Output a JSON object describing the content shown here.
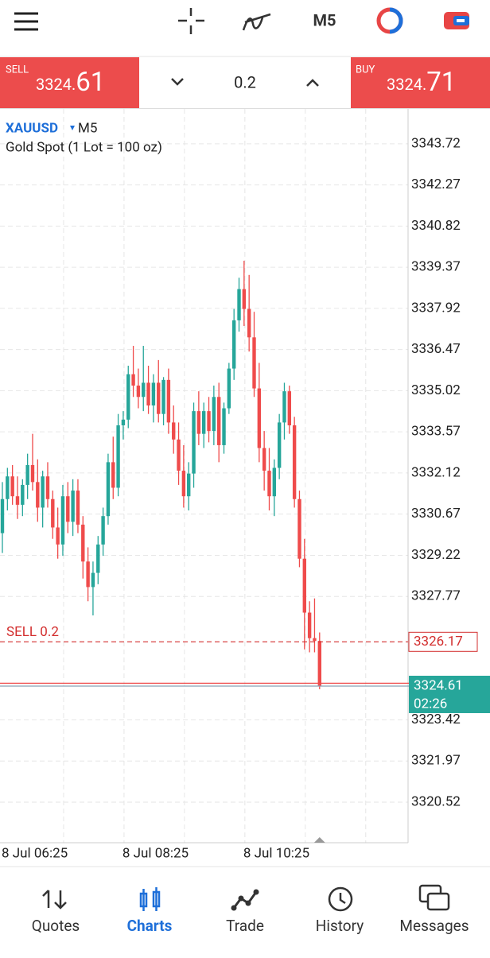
{
  "toolbar": {
    "timeframe": "M5"
  },
  "trade_panel": {
    "sell": {
      "label": "SELL",
      "price_small": "3324.",
      "price_big": "61"
    },
    "lot": "0.2",
    "buy": {
      "label": "BUY",
      "price_small": "3324.",
      "price_big": "71"
    }
  },
  "chart_header": {
    "symbol": "XAUUSD",
    "timeframe": "M5",
    "description": "Gold Spot (1 Lot = 100 oz)"
  },
  "chart_data": {
    "type": "candlestick",
    "categories": [
      "8 Jul 06:25",
      null,
      null,
      null,
      null,
      null,
      null,
      null,
      null,
      null,
      null,
      null,
      null,
      null,
      null,
      null,
      null,
      null,
      null,
      null,
      null,
      null,
      null,
      null,
      "8 Jul 08:25",
      null,
      null,
      null,
      null,
      null,
      null,
      null,
      null,
      null,
      null,
      null,
      null,
      null,
      null,
      null,
      null,
      null,
      null,
      null,
      null,
      null,
      null,
      null,
      "8 Jul 10:25",
      null,
      null,
      null,
      null,
      null,
      null,
      null,
      null,
      null,
      null,
      null,
      null,
      null,
      null,
      null
    ],
    "open": [
      3330.0,
      3331.2,
      3332.0,
      3331.3,
      3331.0,
      3331.7,
      3332.4,
      3331.8,
      3330.9,
      3332.0,
      3331.2,
      3330.2,
      3329.6,
      3331.3,
      3330.4,
      3331.5,
      3330.3,
      3329.0,
      3328.1,
      3328.6,
      3329.6,
      3330.6,
      3332.5,
      3331.6,
      3333.8,
      3334.0,
      3335.6,
      3335.2,
      3334.8,
      3335.3,
      3334.5,
      3335.3,
      3334.2,
      3335.4,
      3333.9,
      3333.3,
      3332.2,
      3331.3,
      3332.1,
      3334.3,
      3333.5,
      3334.3,
      3333.6,
      3334.8,
      3333.1,
      3334.4,
      3335.8,
      3337.5,
      3338.6,
      3337.9,
      3336.9,
      3335.1,
      3333.0,
      3332.2,
      3331.3,
      3332.3,
      3333.9,
      3335.0,
      3333.8,
      3331.2,
      3329.1,
      3327.2,
      3326.3,
      3326.2
    ],
    "high": [
      3331.8,
      3332.3,
      3332.4,
      3332.0,
      3331.9,
      3332.8,
      3333.5,
      3332.6,
      3332.2,
      3332.5,
      3331.5,
      3330.9,
      3331.7,
      3331.8,
      3331.9,
      3331.9,
      3330.6,
      3329.5,
      3329.0,
      3329.9,
      3330.9,
      3332.8,
      3333.4,
      3334.2,
      3334.3,
      3335.9,
      3336.6,
      3335.8,
      3336.6,
      3335.9,
      3335.6,
      3336.1,
      3335.5,
      3335.8,
      3334.5,
      3333.9,
      3333.1,
      3332.5,
      3334.6,
      3335.0,
      3334.6,
      3334.8,
      3335.2,
      3335.3,
      3334.6,
      3336.0,
      3337.9,
      3339.0,
      3339.6,
      3339.1,
      3337.8,
      3336.0,
      3333.6,
      3333.0,
      3332.6,
      3334.2,
      3335.3,
      3335.2,
      3334.1,
      3331.5,
      3329.8,
      3327.6,
      3327.7,
      3326.5
    ],
    "low": [
      3329.3,
      3330.8,
      3331.0,
      3330.5,
      3330.6,
      3331.2,
      3331.5,
      3330.4,
      3330.2,
      3330.9,
      3329.8,
      3329.1,
      3329.2,
      3330.0,
      3329.9,
      3330.0,
      3328.4,
      3327.6,
      3327.1,
      3328.2,
      3329.2,
      3330.3,
      3331.2,
      3331.3,
      3333.3,
      3333.7,
      3334.8,
      3334.4,
      3334.3,
      3334.2,
      3333.9,
      3333.9,
      3333.8,
      3333.5,
      3332.8,
      3331.7,
      3330.9,
      3330.8,
      3331.6,
      3333.1,
      3333.0,
      3333.2,
      3333.1,
      3332.5,
      3332.8,
      3334.2,
      3335.4,
      3337.1,
      3337.3,
      3336.4,
      3334.8,
      3332.5,
      3331.5,
      3330.8,
      3330.6,
      3331.9,
      3333.3,
      3333.5,
      3330.9,
      3328.8,
      3325.9,
      3325.8,
      3325.8,
      3324.5
    ],
    "close": [
      3331.2,
      3332.0,
      3331.3,
      3331.0,
      3331.7,
      3332.4,
      3331.8,
      3330.9,
      3332.0,
      3331.2,
      3330.2,
      3329.6,
      3331.3,
      3330.4,
      3331.5,
      3330.3,
      3329.0,
      3328.1,
      3328.6,
      3329.6,
      3330.6,
      3332.5,
      3331.6,
      3333.8,
      3334.0,
      3335.6,
      3335.2,
      3334.8,
      3335.3,
      3334.5,
      3335.3,
      3334.2,
      3335.4,
      3333.9,
      3333.3,
      3332.2,
      3331.3,
      3332.1,
      3334.3,
      3333.5,
      3334.3,
      3333.6,
      3334.8,
      3333.1,
      3334.4,
      3335.8,
      3337.5,
      3338.6,
      3337.9,
      3336.9,
      3335.1,
      3333.0,
      3332.2,
      3331.3,
      3332.3,
      3333.9,
      3335.0,
      3333.8,
      3331.2,
      3329.1,
      3327.2,
      3326.3,
      3326.2,
      3324.61
    ],
    "up_color": "#26a69a",
    "down_color": "#ef4b4b",
    "ylim": [
      3319.09,
      3344.95
    ],
    "yticks": [
      3343.72,
      3342.27,
      3340.82,
      3339.37,
      3337.92,
      3336.47,
      3335.02,
      3333.57,
      3332.12,
      3330.67,
      3329.22,
      3327.77,
      3323.42,
      3321.97,
      3320.52
    ],
    "grid": true,
    "order_line": {
      "label": "SELL 0.2",
      "value": 3326.17,
      "color": "#d32f2f"
    },
    "bid": 3324.61,
    "ask": 3324.71,
    "countdown": "02:26"
  },
  "nav": [
    "Quotes",
    "Charts",
    "Trade",
    "History",
    "Messages"
  ]
}
